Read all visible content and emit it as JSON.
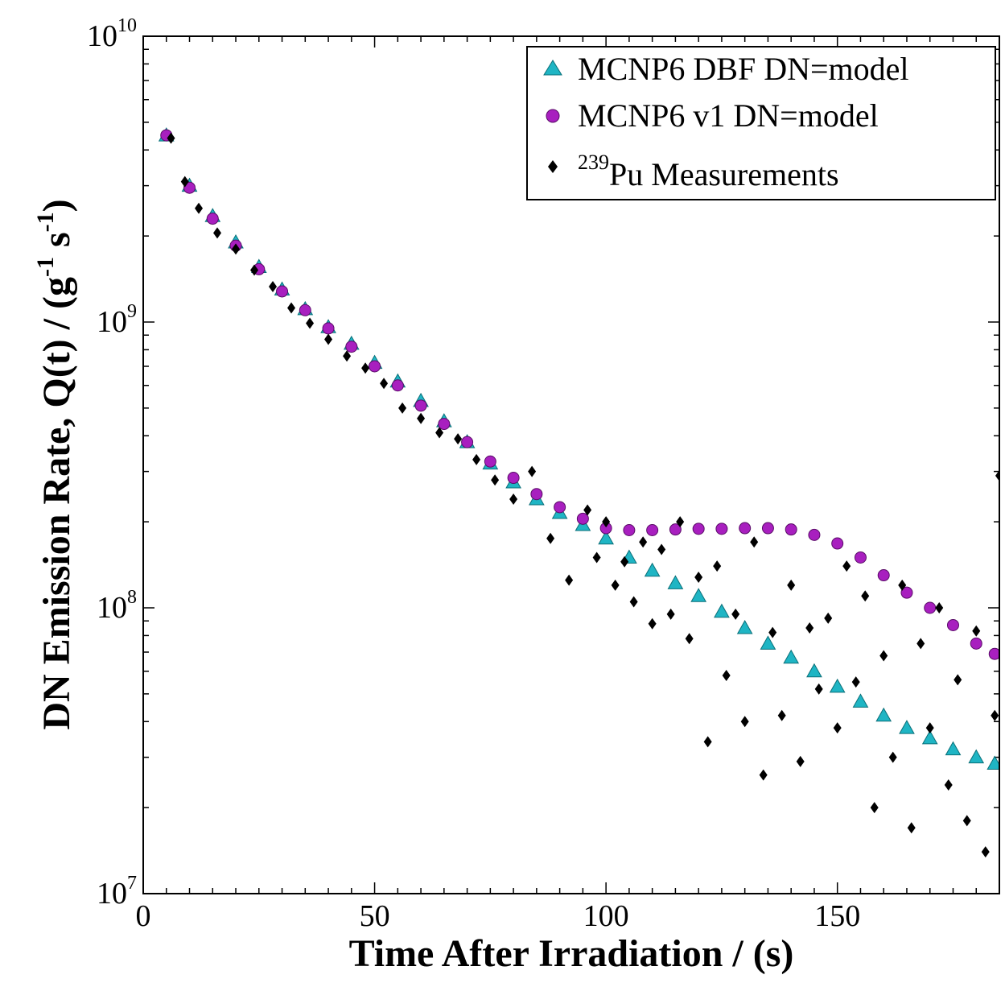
{
  "chart_data": {
    "type": "scatter",
    "title": "",
    "xlabel": "Time After Irradiation / (s)",
    "ylabel": {
      "main": "DN Emission Rate, Q(t) / (g",
      "sup1": "-1",
      "mid": " s",
      "sup2": "-1",
      "close": ")"
    },
    "xlim": [
      0,
      185
    ],
    "ylim": [
      10000000,
      10000000000
    ],
    "y_scale": "log",
    "x_ticks": [
      {
        "value": 0,
        "label": "0"
      },
      {
        "value": 50,
        "label": "50"
      },
      {
        "value": 100,
        "label": "100"
      },
      {
        "value": 150,
        "label": "150"
      }
    ],
    "y_ticks": [
      {
        "value": 10000000,
        "base": "10",
        "exp": "7"
      },
      {
        "value": 100000000,
        "base": "10",
        "exp": "8"
      },
      {
        "value": 1000000000,
        "base": "10",
        "exp": "9"
      },
      {
        "value": 10000000000,
        "base": "10",
        "exp": "10"
      }
    ],
    "grid": false,
    "legend_position": "top-right",
    "series": [
      {
        "name": "MCNP6 DBF DN=model",
        "marker": "triangle",
        "color": "#1fb5c4",
        "x": [
          5,
          10,
          15,
          20,
          25,
          30,
          35,
          40,
          45,
          50,
          55,
          60,
          65,
          70,
          75,
          80,
          85,
          90,
          95,
          100,
          105,
          110,
          115,
          120,
          125,
          130,
          135,
          140,
          145,
          150,
          155,
          160,
          165,
          170,
          175,
          180,
          184
        ],
        "y": [
          4500000000,
          3000000000,
          2350000000,
          1900000000,
          1560000000,
          1300000000,
          1110000000,
          960000000,
          840000000,
          720000000,
          620000000,
          530000000,
          450000000,
          380000000,
          320000000,
          275000000,
          240000000,
          215000000,
          195000000,
          175000000,
          150000000,
          135000000,
          122000000,
          110000000,
          97000000,
          85000000,
          75000000,
          67000000,
          60000000,
          53000000,
          47000000,
          42000000,
          38000000,
          35000000,
          32000000,
          30000000,
          28500000
        ]
      },
      {
        "name": "MCNP6 v1 DN=model",
        "marker": "circle",
        "color": "#a81fbf",
        "x": [
          5,
          10,
          15,
          20,
          25,
          30,
          35,
          40,
          45,
          50,
          55,
          60,
          65,
          70,
          75,
          80,
          85,
          90,
          95,
          100,
          105,
          110,
          115,
          120,
          125,
          130,
          135,
          140,
          145,
          150,
          155,
          160,
          165,
          170,
          175,
          180,
          184
        ],
        "y": [
          4500000000,
          2950000000,
          2300000000,
          1850000000,
          1530000000,
          1280000000,
          1100000000,
          950000000,
          820000000,
          700000000,
          600000000,
          510000000,
          440000000,
          380000000,
          325000000,
          285000000,
          250000000,
          225000000,
          205000000,
          190000000,
          187000000,
          187000000,
          188000000,
          189000000,
          189000000,
          190000000,
          190000000,
          188000000,
          180000000,
          168000000,
          150000000,
          130000000,
          113000000,
          100000000,
          87000000,
          75000000,
          69000000
        ]
      },
      {
        "name": "Pu Measurements",
        "name_sup": "239",
        "marker": "diamond",
        "color": "#000000",
        "x": [
          6,
          9,
          12,
          16,
          20,
          24,
          28,
          32,
          36,
          40,
          44,
          48,
          52,
          56,
          60,
          64,
          68,
          72,
          76,
          80,
          84,
          88,
          92,
          96,
          98,
          100,
          102,
          104,
          106,
          108,
          110,
          112,
          114,
          116,
          118,
          120,
          122,
          124,
          126,
          128,
          130,
          132,
          134,
          136,
          138,
          140,
          142,
          144,
          146,
          148,
          150,
          152,
          154,
          156,
          158,
          160,
          162,
          164,
          166,
          168,
          170,
          172,
          174,
          176,
          178,
          180,
          182,
          184,
          185
        ],
        "y": [
          4400000000,
          3100000000,
          2500000000,
          2050000000,
          1800000000,
          1520000000,
          1330000000,
          1120000000,
          990000000,
          870000000,
          760000000,
          690000000,
          610000000,
          500000000,
          460000000,
          410000000,
          390000000,
          330000000,
          280000000,
          240000000,
          300000000,
          175000000,
          125000000,
          220000000,
          150000000,
          200000000,
          120000000,
          145000000,
          105000000,
          170000000,
          88000000,
          160000000,
          95000000,
          200000000,
          78000000,
          128000000,
          34000000,
          140000000,
          58000000,
          95000000,
          40000000,
          170000000,
          26000000,
          82000000,
          42000000,
          120000000,
          29000000,
          85000000,
          52000000,
          92000000,
          38000000,
          140000000,
          55000000,
          110000000,
          20000000,
          68000000,
          30000000,
          120000000,
          17000000,
          75000000,
          38000000,
          100000000,
          24000000,
          56000000,
          18000000,
          83000000,
          14000000,
          42000000,
          290000000
        ]
      }
    ]
  }
}
